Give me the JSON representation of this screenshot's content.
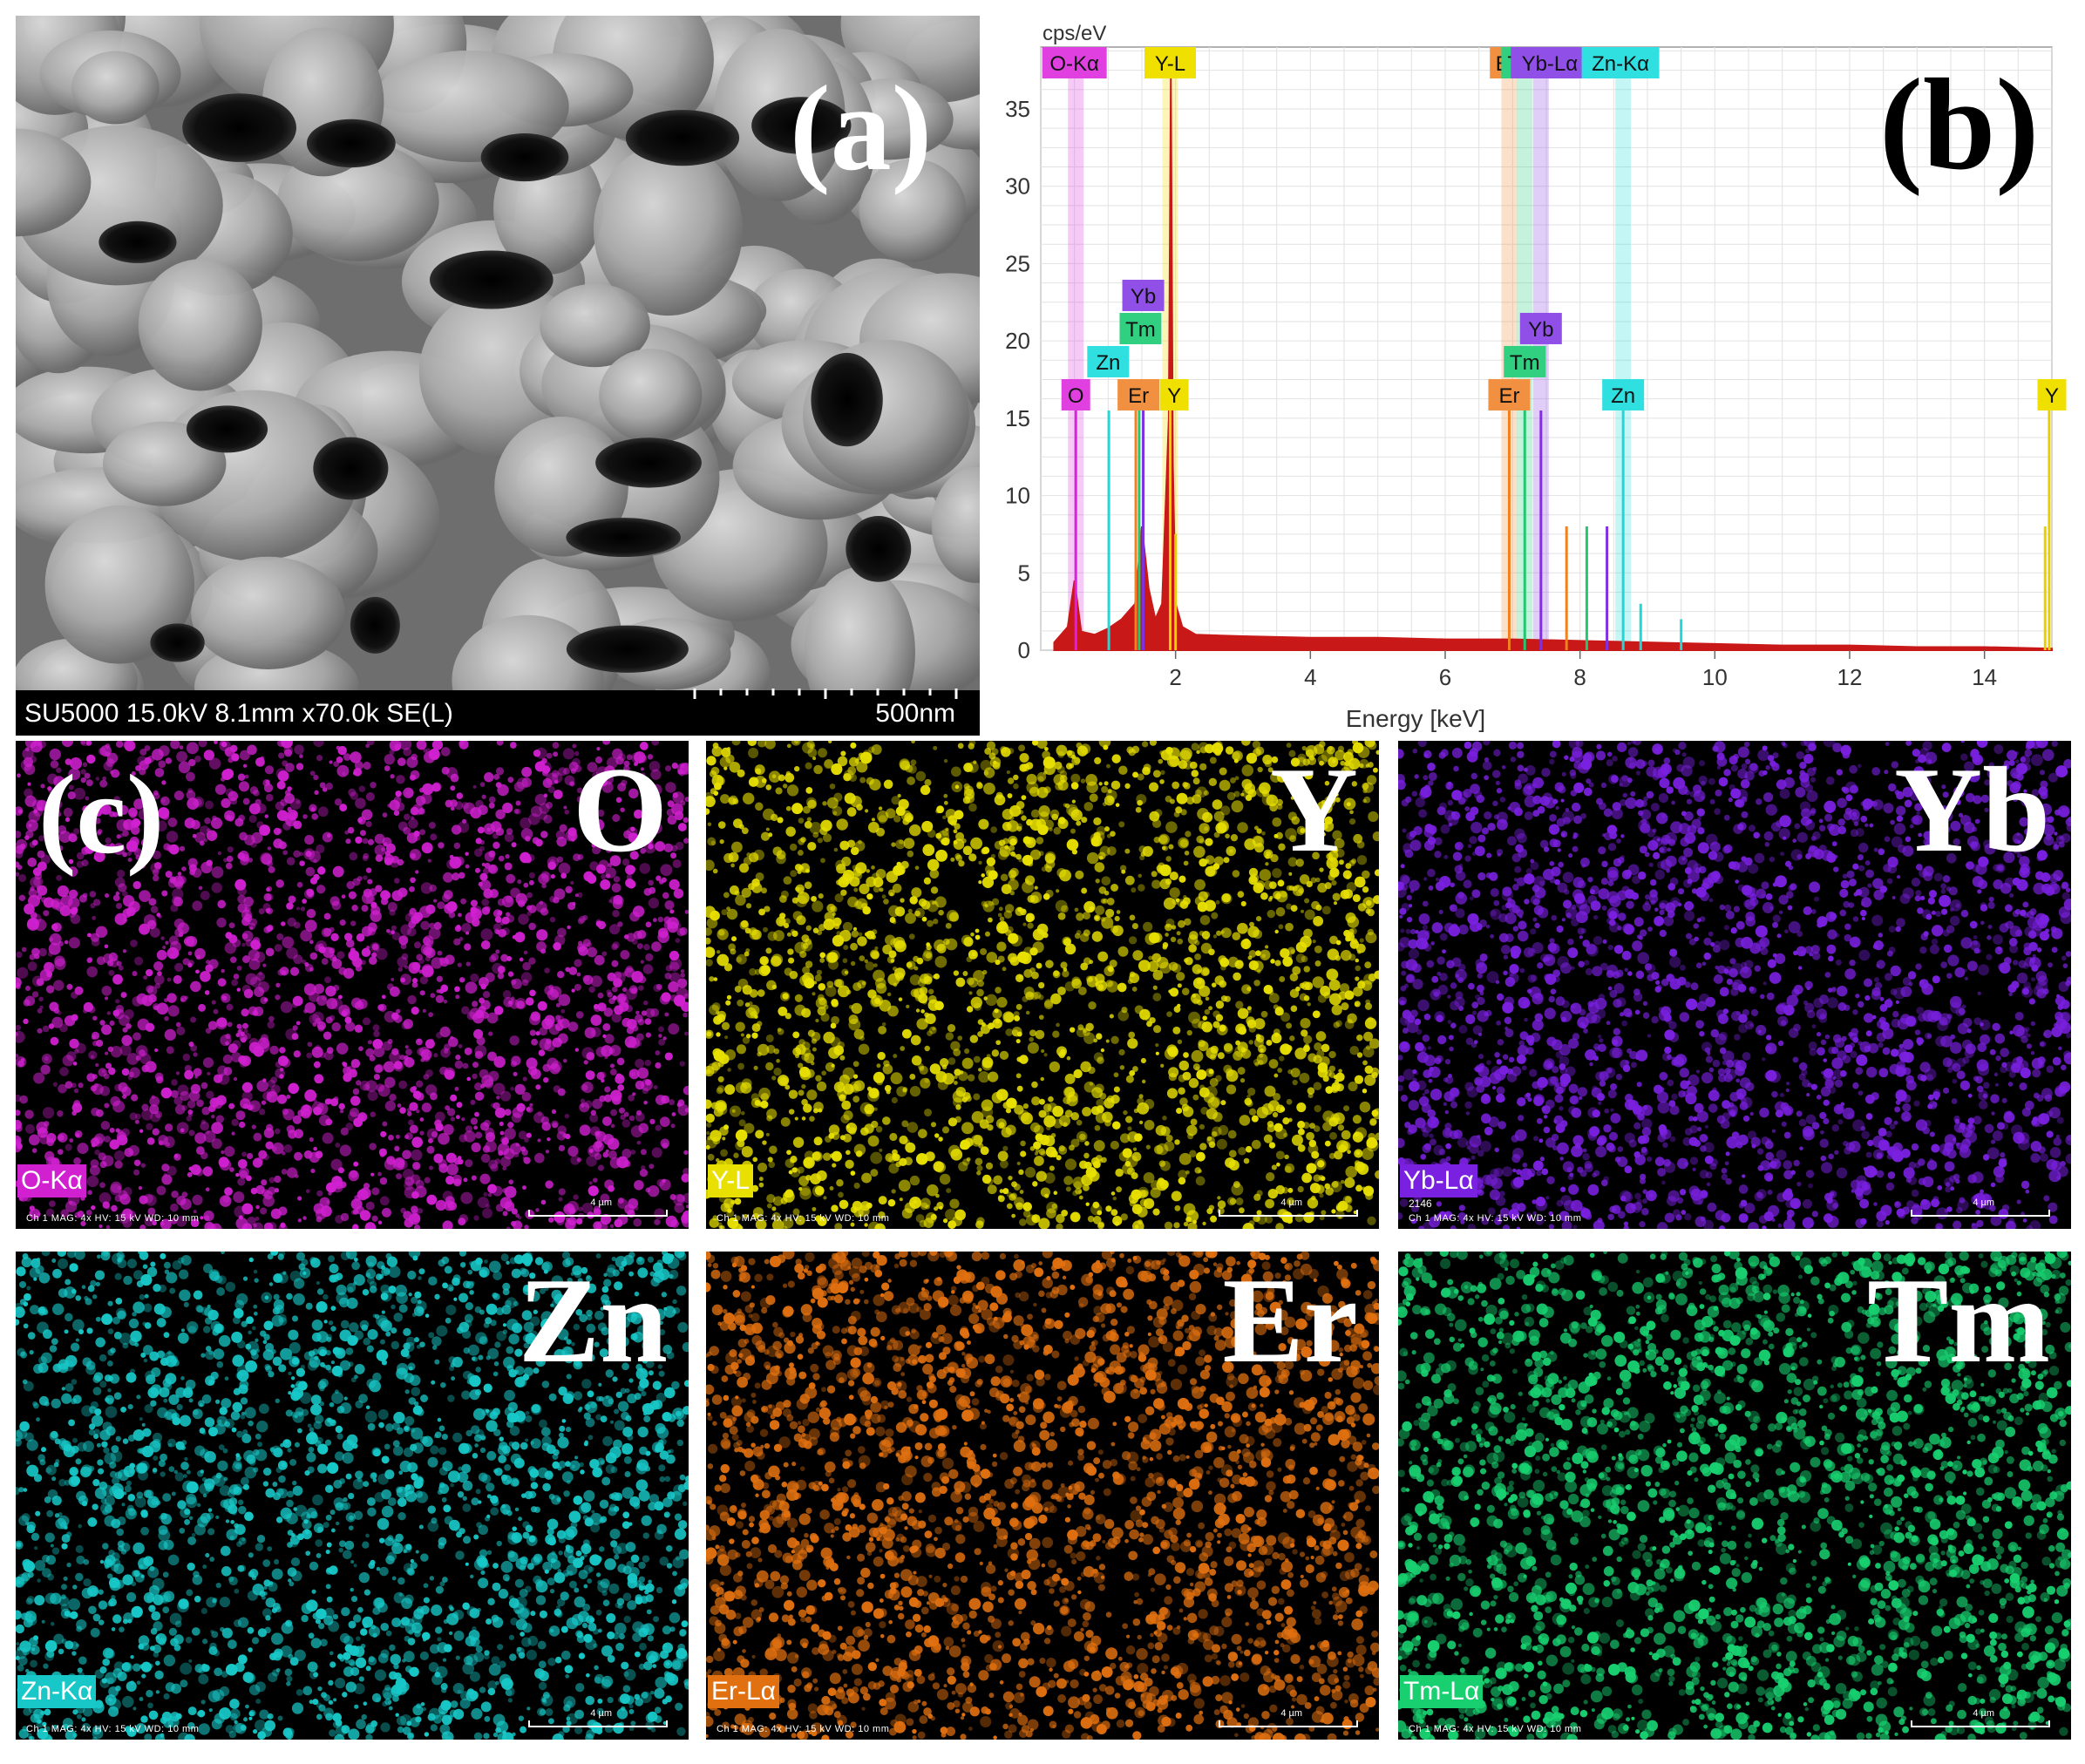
{
  "panel_a": {
    "letter": "(a)",
    "info_bar": "SU5000 15.0kV 8.1mm x70.0k SE(L)",
    "scale_label": "500nm"
  },
  "panel_b": {
    "letter": "(b)"
  },
  "panel_c": {
    "letter": "(c)",
    "maps": [
      {
        "element": "O",
        "tag": "O-Kα",
        "color": "#d020d0",
        "meta": "Ch 1   MAG: 4x   HV: 15 kV   WD: 10 mm",
        "scale": "4 µm",
        "number": ""
      },
      {
        "element": "Y",
        "tag": "Y-L",
        "color": "#e8e000",
        "meta": "Ch 1   MAG: 4x   HV: 15 kV   WD: 10 mm",
        "scale": "4 µm",
        "number": ""
      },
      {
        "element": "Yb",
        "tag": "Yb-Lα",
        "color": "#7a20e0",
        "meta": "Ch 1   MAG: 4x   HV: 15 kV   WD: 10 mm",
        "scale": "4 µm",
        "number": "2146"
      },
      {
        "element": "Zn",
        "tag": "Zn-Kα",
        "color": "#18c8c8",
        "meta": "Ch 1   MAG: 4x   HV: 15 kV   WD: 10 mm",
        "scale": "4 µm",
        "number": ""
      },
      {
        "element": "Er",
        "tag": "Er-Lα",
        "color": "#e07010",
        "meta": "Ch 1   MAG: 4x   HV: 15 kV   WD: 10 mm",
        "scale": "4 µm",
        "number": ""
      },
      {
        "element": "Tm",
        "tag": "Tm-Lα",
        "color": "#18d070",
        "meta": "Ch 1   MAG: 4x   HV: 15 kV   WD: 10 mm",
        "scale": "4 µm",
        "number": ""
      }
    ]
  },
  "chart_data": {
    "type": "line",
    "title": "",
    "xlabel": "Energy [keV]",
    "ylabel": "cps/eV",
    "xlim": [
      0,
      15
    ],
    "ylim": [
      0,
      39
    ],
    "xticks": [
      2,
      4,
      6,
      8,
      10,
      12,
      14
    ],
    "yticks": [
      0,
      5,
      10,
      15,
      20,
      25,
      30,
      35
    ],
    "grid": true,
    "series": [
      {
        "color": "#c81818",
        "x": [
          0.2,
          0.3,
          0.4,
          0.5,
          0.6,
          0.8,
          1.0,
          1.2,
          1.4,
          1.5,
          1.6,
          1.7,
          1.8,
          1.9,
          1.93,
          1.96,
          2.0,
          2.1,
          2.3,
          3,
          4,
          5,
          6,
          7,
          8,
          9,
          10,
          11,
          12,
          13,
          14,
          15
        ],
        "y": [
          0.5,
          1.0,
          1.5,
          4.5,
          1.2,
          1.0,
          1.4,
          2.0,
          3.0,
          8.0,
          4.0,
          2.0,
          3.0,
          15.0,
          37.0,
          12.0,
          3.0,
          1.5,
          1.0,
          0.9,
          0.8,
          0.8,
          0.7,
          0.7,
          0.6,
          0.5,
          0.4,
          0.3,
          0.3,
          0.2,
          0.2,
          0.1
        ]
      }
    ],
    "peak_lines": [
      {
        "element": "O",
        "energy": 0.52,
        "height": 15.5,
        "color": "#e020e0"
      },
      {
        "element": "Zn",
        "energy": 1.01,
        "height": 15.5,
        "color": "#20d8d8"
      },
      {
        "element": "Tm",
        "energy": 1.46,
        "height": 15.5,
        "color": "#20c870"
      },
      {
        "element": "Er",
        "energy": 1.41,
        "height": 15.5,
        "color": "#f08020"
      },
      {
        "element": "Yb",
        "energy": 1.52,
        "height": 15.5,
        "color": "#8030e0"
      },
      {
        "element": "Y",
        "energy": 1.92,
        "height": 15.5,
        "color": "#e8d000"
      },
      {
        "element": "Er",
        "energy": 6.95,
        "height": 15.5,
        "color": "#f08020"
      },
      {
        "element": "Tm",
        "energy": 7.18,
        "height": 15.5,
        "color": "#20c870"
      },
      {
        "element": "Yb",
        "energy": 7.42,
        "height": 15.5,
        "color": "#8030e0"
      },
      {
        "element": "Zn",
        "energy": 8.64,
        "height": 15.5,
        "color": "#20d8d8"
      },
      {
        "element": "Y",
        "energy": 14.96,
        "height": 15.5,
        "color": "#e8d000"
      }
    ],
    "minor_lines": [
      {
        "energy": 7.8,
        "height": 8,
        "color": "#f08020"
      },
      {
        "energy": 8.1,
        "height": 8,
        "color": "#20c870"
      },
      {
        "energy": 8.4,
        "height": 8,
        "color": "#8030e0"
      },
      {
        "energy": 8.9,
        "height": 3,
        "color": "#20d8d8"
      },
      {
        "energy": 9.5,
        "height": 2,
        "color": "#20d8d8"
      },
      {
        "energy": 2.0,
        "height": 7.5,
        "color": "#e8d000"
      },
      {
        "energy": 14.9,
        "height": 8,
        "color": "#e8d000"
      }
    ],
    "bands": [
      {
        "label": "O-Kα",
        "energy": 0.52,
        "color": "#e040e0"
      },
      {
        "label": "Y-L",
        "energy": 1.92,
        "color": "#f0e000"
      },
      {
        "label": "Er-Lα",
        "energy": 6.95,
        "color": "#f09040"
      },
      {
        "label": "Tm-Lα",
        "energy": 7.18,
        "color": "#30d080"
      },
      {
        "label": "Yb-Lα",
        "energy": 7.42,
        "color": "#9050e8"
      },
      {
        "label": "Zn-Kα",
        "energy": 8.64,
        "color": "#30e0e0"
      }
    ],
    "top_labels": [
      {
        "text": "O-Kα",
        "energy": 0.5,
        "color": "#e040e0"
      },
      {
        "text": "Y-L",
        "energy": 1.92,
        "color": "#f0e000"
      },
      {
        "text": "E",
        "energy": 6.85,
        "color": "#f09040"
      },
      {
        "text": "T",
        "energy": 7.02,
        "color": "#30d080"
      },
      {
        "text": "Yb-Lα",
        "energy": 7.55,
        "color": "#9050e8"
      },
      {
        "text": "Zn-Kα",
        "energy": 8.6,
        "color": "#30e0e0"
      }
    ],
    "peak_labels": [
      {
        "text": "O",
        "energy": 0.52,
        "level": 0,
        "color": "#e040e0"
      },
      {
        "text": "Zn",
        "energy": 1.0,
        "level": 1,
        "color": "#30e0e0"
      },
      {
        "text": "Tm",
        "energy": 1.48,
        "level": 2,
        "color": "#30d080"
      },
      {
        "text": "Yb",
        "energy": 1.52,
        "level": 3,
        "color": "#9050e8"
      },
      {
        "text": "Er",
        "energy": 1.45,
        "level": 0,
        "color": "#f09040"
      },
      {
        "text": "Y",
        "energy": 1.98,
        "level": 0,
        "color": "#f0e000"
      },
      {
        "text": "Yb",
        "energy": 7.42,
        "level": 2,
        "color": "#9050e8"
      },
      {
        "text": "Tm",
        "energy": 7.18,
        "level": 1,
        "color": "#30d080"
      },
      {
        "text": "Er",
        "energy": 6.95,
        "level": 0,
        "color": "#f09040"
      },
      {
        "text": "Zn",
        "energy": 8.64,
        "level": 0,
        "color": "#30e0e0"
      },
      {
        "text": "Y",
        "energy": 15.0,
        "level": 0,
        "color": "#f0e000"
      }
    ]
  }
}
